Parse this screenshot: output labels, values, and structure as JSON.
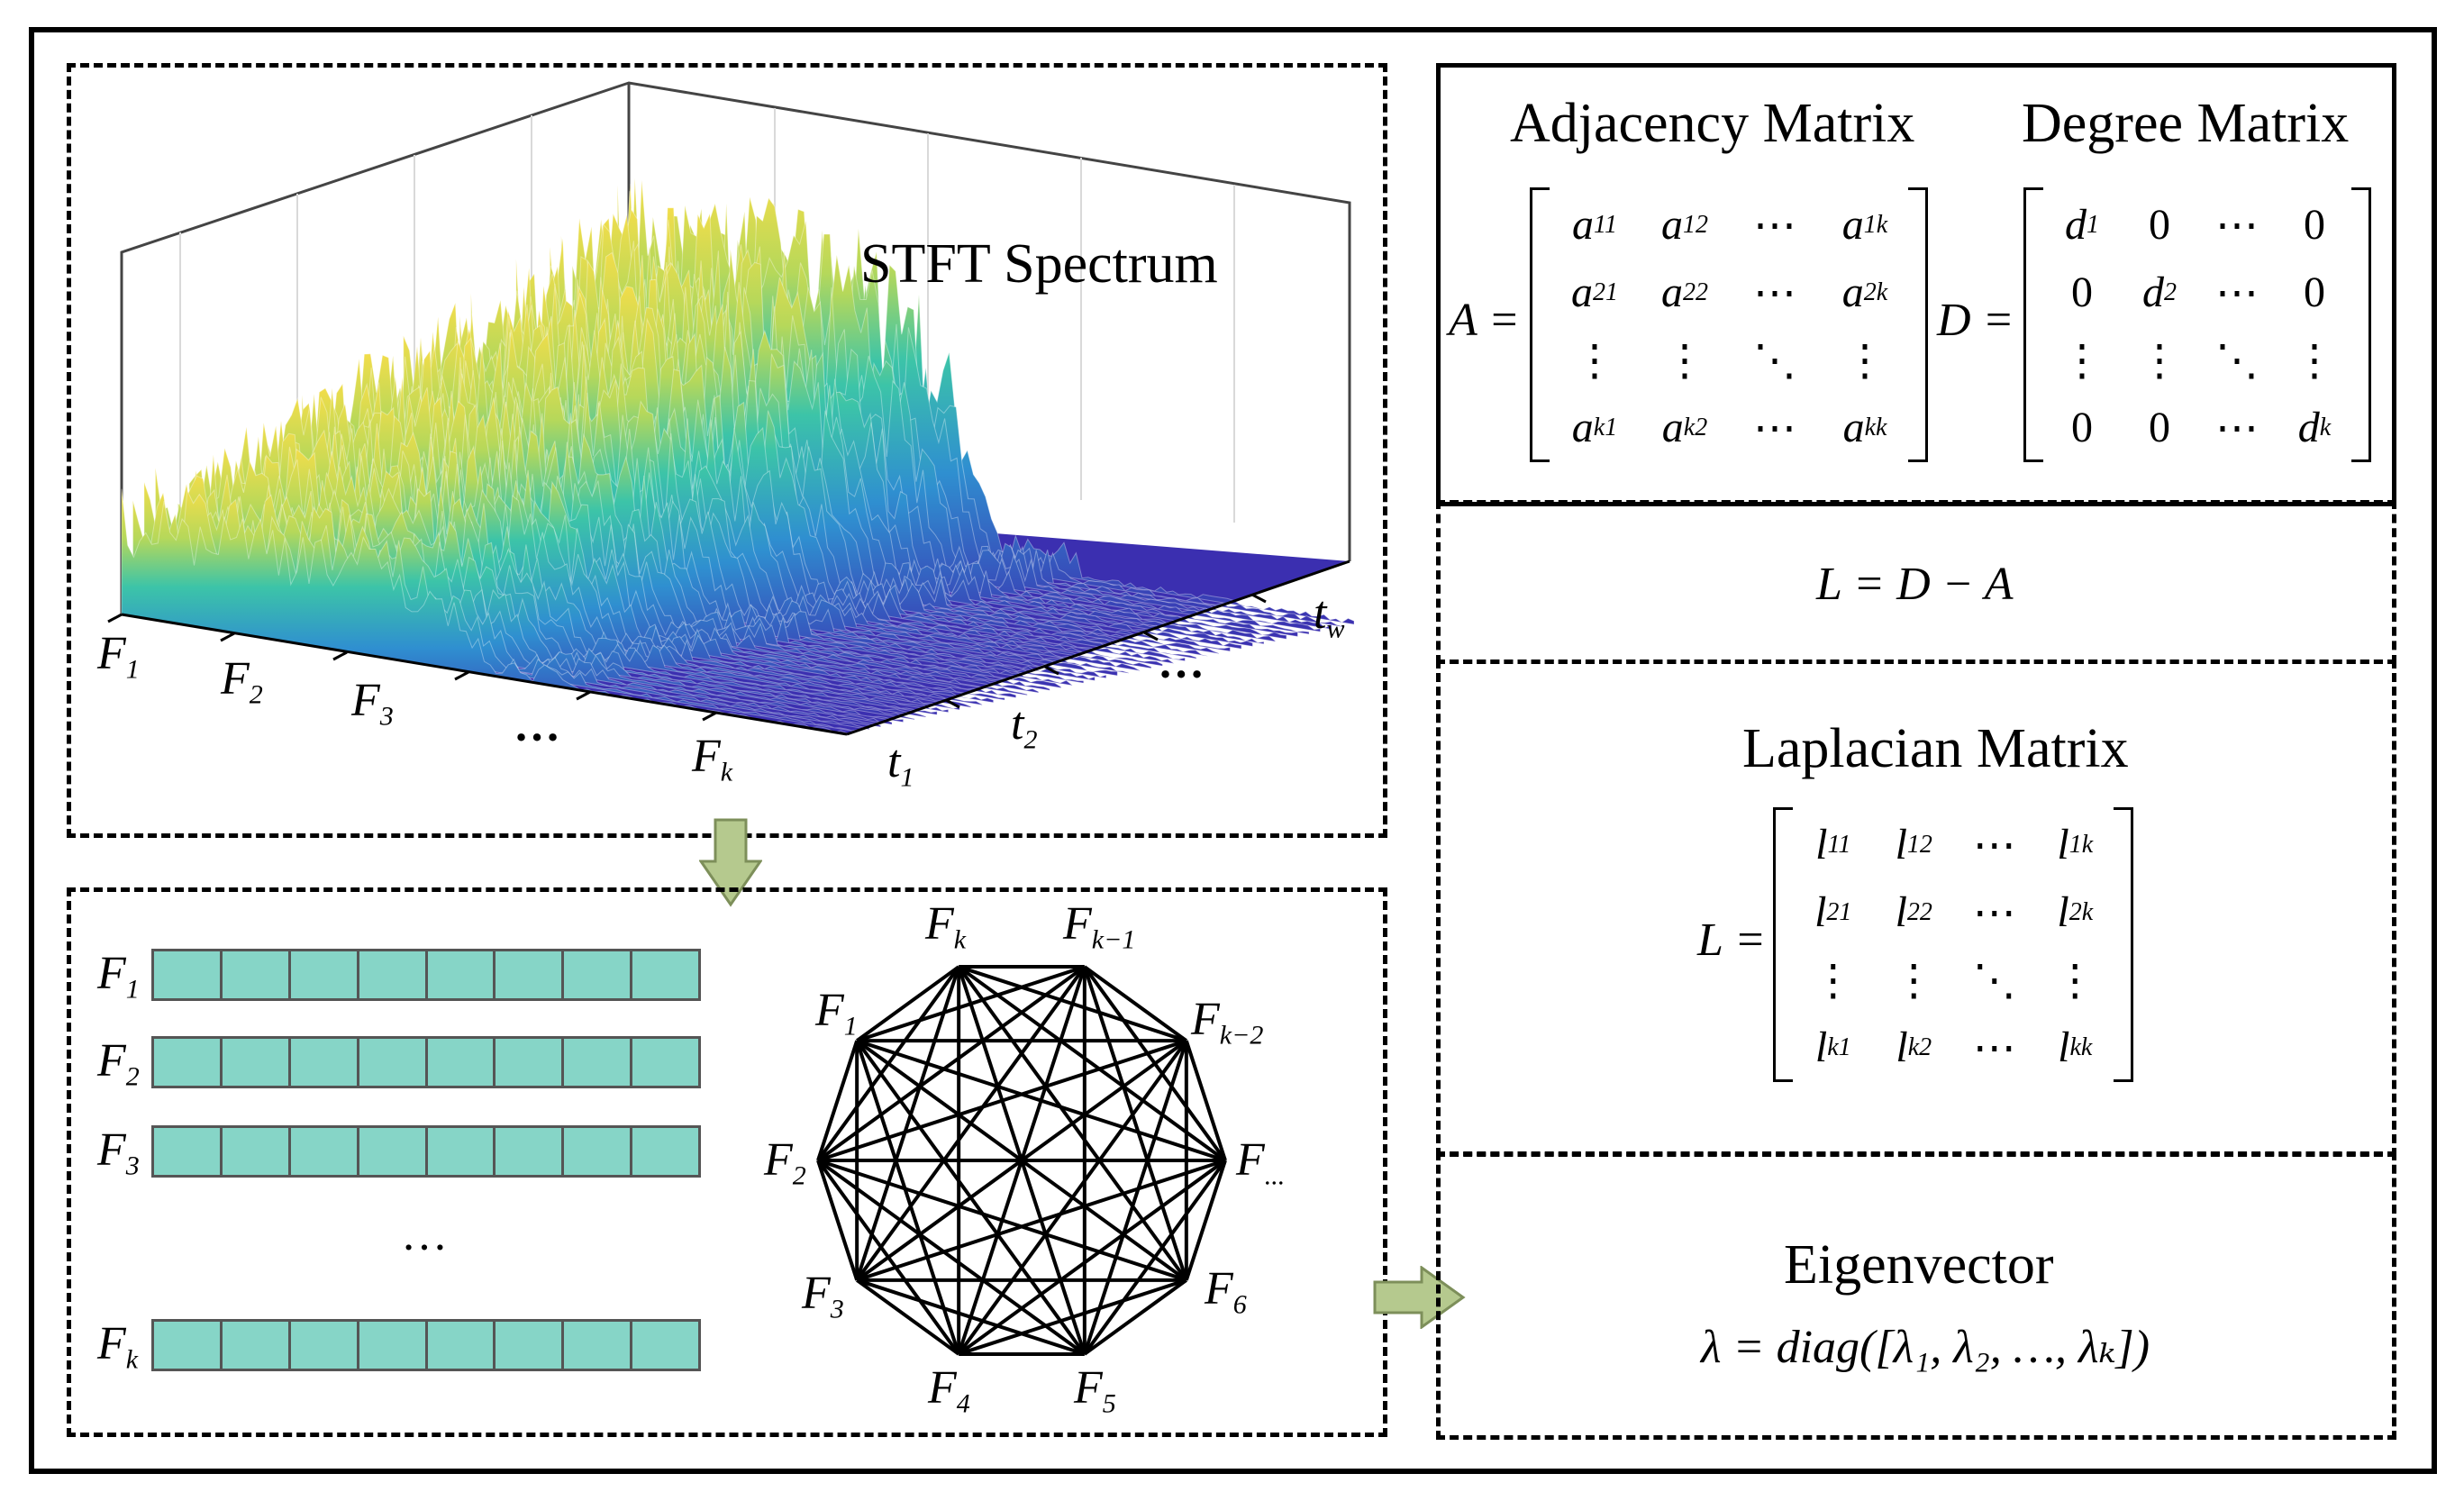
{
  "spectrum": {
    "title": "STFT Spectrum",
    "freq_labels": [
      {
        "base": "F",
        "sub": "1"
      },
      {
        "base": "F",
        "sub": "2"
      },
      {
        "base": "F",
        "sub": "3"
      },
      {
        "base": "…",
        "sub": ""
      },
      {
        "base": "F",
        "sub": "k"
      }
    ],
    "time_labels": [
      {
        "base": "t",
        "sub": "1"
      },
      {
        "base": "t",
        "sub": "2"
      },
      {
        "base": "…",
        "sub": ""
      },
      {
        "base": "t",
        "sub": "w"
      }
    ]
  },
  "feature_rows": {
    "rows": [
      {
        "base": "F",
        "sub": "1"
      },
      {
        "base": "F",
        "sub": "2"
      },
      {
        "base": "F",
        "sub": "3"
      },
      {
        "base": "F",
        "sub": "k"
      }
    ],
    "ellipsis": "…"
  },
  "graph": {
    "nodes": [
      {
        "base": "F",
        "sub": "k"
      },
      {
        "base": "F",
        "sub": "k−1"
      },
      {
        "base": "F",
        "sub": "k−2"
      },
      {
        "base": "F",
        "sub": "..."
      },
      {
        "base": "F",
        "sub": "6"
      },
      {
        "base": "F",
        "sub": "5"
      },
      {
        "base": "F",
        "sub": "4"
      },
      {
        "base": "F",
        "sub": "3"
      },
      {
        "base": "F",
        "sub": "2"
      },
      {
        "base": "F",
        "sub": "1"
      }
    ]
  },
  "adjacency": {
    "title": "Adjacency Matrix",
    "lhs": "A =",
    "cells": [
      {
        "base": "a",
        "sub": "11"
      },
      {
        "base": "a",
        "sub": "12"
      },
      {
        "base": "⋯",
        "sub": ""
      },
      {
        "base": "a",
        "sub": "1k"
      },
      {
        "base": "a",
        "sub": "21"
      },
      {
        "base": "a",
        "sub": "22"
      },
      {
        "base": "⋯",
        "sub": ""
      },
      {
        "base": "a",
        "sub": "2k"
      },
      {
        "base": "⋮",
        "sub": ""
      },
      {
        "base": "⋮",
        "sub": ""
      },
      {
        "base": "⋱",
        "sub": ""
      },
      {
        "base": "⋮",
        "sub": ""
      },
      {
        "base": "a",
        "sub": "k1"
      },
      {
        "base": "a",
        "sub": "k2"
      },
      {
        "base": "⋯",
        "sub": ""
      },
      {
        "base": "a",
        "sub": "kk"
      }
    ]
  },
  "degree": {
    "title": "Degree Matrix",
    "lhs": "D =",
    "cells": [
      {
        "base": "d",
        "sub": "1"
      },
      {
        "base": "0",
        "sub": ""
      },
      {
        "base": "⋯",
        "sub": ""
      },
      {
        "base": "0",
        "sub": ""
      },
      {
        "base": "0",
        "sub": ""
      },
      {
        "base": "d",
        "sub": "2"
      },
      {
        "base": "⋯",
        "sub": ""
      },
      {
        "base": "0",
        "sub": ""
      },
      {
        "base": "⋮",
        "sub": ""
      },
      {
        "base": "⋮",
        "sub": ""
      },
      {
        "base": "⋱",
        "sub": ""
      },
      {
        "base": "⋮",
        "sub": ""
      },
      {
        "base": "0",
        "sub": ""
      },
      {
        "base": "0",
        "sub": ""
      },
      {
        "base": "⋯",
        "sub": ""
      },
      {
        "base": "d",
        "sub": "k"
      }
    ]
  },
  "laplacian_eq": "L = D − A",
  "laplacian": {
    "title": "Laplacian Matrix",
    "lhs": "L =",
    "cells": [
      {
        "base": "l",
        "sub": "11"
      },
      {
        "base": "l",
        "sub": "12"
      },
      {
        "base": "⋯",
        "sub": ""
      },
      {
        "base": "l",
        "sub": "1k"
      },
      {
        "base": "l",
        "sub": "21"
      },
      {
        "base": "l",
        "sub": "22"
      },
      {
        "base": "⋯",
        "sub": ""
      },
      {
        "base": "l",
        "sub": "2k"
      },
      {
        "base": "⋮",
        "sub": ""
      },
      {
        "base": "⋮",
        "sub": ""
      },
      {
        "base": "⋱",
        "sub": ""
      },
      {
        "base": "⋮",
        "sub": ""
      },
      {
        "base": "l",
        "sub": "k1"
      },
      {
        "base": "l",
        "sub": "k2"
      },
      {
        "base": "⋯",
        "sub": ""
      },
      {
        "base": "l",
        "sub": "kk"
      }
    ]
  },
  "eigen": {
    "title": "Eigenvector",
    "formula": "λ = diag([λ₁, λ₂, …, λₖ])"
  },
  "colors": {
    "cell_fill": "#86d5c7",
    "arrow_fill": "#b5c98e",
    "surface_low": "#3b2fb0",
    "surface_high": "#f2dd4a"
  }
}
